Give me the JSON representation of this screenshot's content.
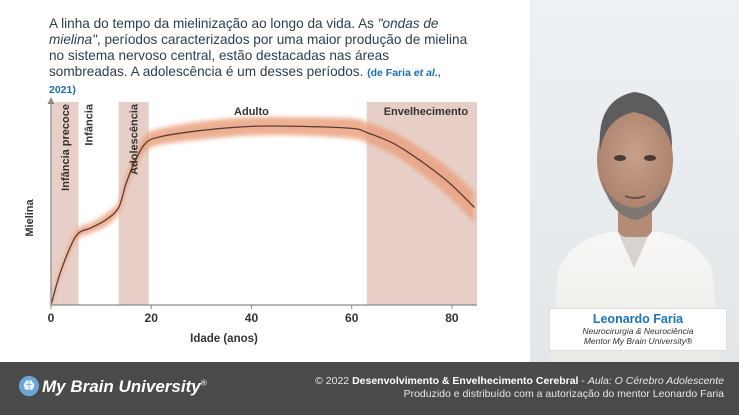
{
  "slide": {
    "paragraph": {
      "part1": "A linha do tempo da mielinização ao longo da vida. As ",
      "italic": "\"ondas de mielina\"",
      "part2": ", períodos caracterizados por uma maior produção de mielina no sistema nervoso central, estão destacadas nas áreas sombreadas. A adolescência é um desses períodos.",
      "citation_open": "(de Faria ",
      "citation_etal": "et al.",
      "citation_close": ", 2021)"
    }
  },
  "chart_data": {
    "type": "line",
    "xlabel": "Idade (anos)",
    "ylabel": "Mielina",
    "xlim": [
      0,
      85
    ],
    "xticks": [
      "0",
      "20",
      "40",
      "60",
      "80"
    ],
    "shaded_regions": [
      {
        "label": "Infância precoce",
        "x_start": 0,
        "x_end": 5.5,
        "vertical": true
      },
      {
        "label": "Adolescência",
        "x_start": 13.5,
        "x_end": 19.5,
        "vertical": true
      },
      {
        "label": "Envelhecimento",
        "x_start": 63,
        "x_end": 85,
        "vertical": false
      }
    ],
    "unshaded_labels": [
      {
        "label": "Infância",
        "x": 7.5,
        "vertical": true
      },
      {
        "label": "Adulto",
        "x": 40,
        "vertical": false
      }
    ],
    "series": [
      {
        "x": [
          0,
          2,
          5,
          8,
          11,
          13.5,
          15,
          17,
          19,
          22,
          30,
          40,
          50,
          60,
          63,
          68,
          72,
          76,
          80,
          84.5
        ],
        "y": [
          0.0,
          0.17,
          0.34,
          0.38,
          0.42,
          0.48,
          0.6,
          0.72,
          0.8,
          0.83,
          0.86,
          0.88,
          0.88,
          0.87,
          0.85,
          0.8,
          0.74,
          0.67,
          0.59,
          0.48
        ],
        "band": [
          0.02,
          0.02,
          0.025,
          0.025,
          0.03,
          0.03,
          0.035,
          0.035,
          0.04,
          0.04,
          0.045,
          0.045,
          0.045,
          0.05,
          0.05,
          0.055,
          0.06,
          0.065,
          0.07,
          0.075
        ]
      }
    ],
    "grid": false,
    "colors": {
      "shade": "#e7cfc7",
      "band": "#eaa27f",
      "line": "#5a3b33",
      "axis": "#8a8a8a"
    }
  },
  "presenter": {
    "name": "Leonardo Faria",
    "role_line1": "Neurocirurgia & Neurociência",
    "role_line2": "Mentor My Brain University®"
  },
  "footer": {
    "logo_text": "My Brain University",
    "logo_mark": "®",
    "credit_prefix": "© 2022 ",
    "course": "Desenvolvimento & Envelhecimento Cerebral",
    "dash": " - ",
    "lesson": "Aula: O Cérebro Adolescente",
    "line2": "Produzido e distribuído com a autorização do mentor Leonardo Faria"
  },
  "icons": {
    "brain": "brain-icon"
  }
}
